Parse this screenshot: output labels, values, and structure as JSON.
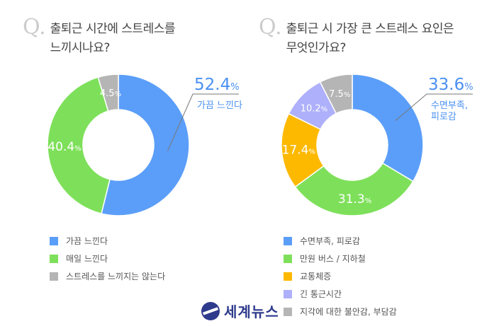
{
  "chart_data": [
    {
      "type": "pie",
      "variant": "donut",
      "title": "출퇴근 시간에 스트레스를 느끼시나요?",
      "question_mark": "Q.",
      "categories": [
        "가끔 느낀다",
        "매일 느낀다",
        "스트레스를 느끼지는 않는다"
      ],
      "values": [
        52.4,
        40.4,
        4.5
      ],
      "unit": "%",
      "colors": [
        "#5b9ef9",
        "#7ee05a",
        "#b5b5b5"
      ],
      "callout": {
        "value_label": "52.4",
        "unit": "%",
        "text": "가끔 느낀다"
      },
      "legend": "bottom-left"
    },
    {
      "type": "pie",
      "variant": "donut",
      "title": "출퇴근 시 가장 큰 스트레스 요인은 무엇인가요?",
      "question_mark": "Q.",
      "categories": [
        "수면부족, 피로감",
        "만원 버스 / 지하철",
        "교통체증",
        "긴 통근시간",
        "지각에 대한 불안감, 부담감"
      ],
      "values": [
        33.6,
        31.3,
        17.4,
        10.2,
        7.5
      ],
      "unit": "%",
      "colors": [
        "#5b9ef9",
        "#7ee05a",
        "#fdb900",
        "#aeb0fb",
        "#b5b5b5"
      ],
      "callout": {
        "value_label": "33.6",
        "unit": "%",
        "text": "수면부족,\n피로감",
        "text_lines": [
          "수면부족,",
          "피로감"
        ]
      },
      "legend": "bottom-right"
    }
  ],
  "q1": {
    "line1": "출퇴근 시간에 스트레스를",
    "line2": "느끼시나요?"
  },
  "q2": {
    "line1": "출퇴근 시 가장 큰 스트레스 요인은",
    "line2": "무엇인가요?"
  },
  "logo": {
    "text": "세계뉴스"
  }
}
